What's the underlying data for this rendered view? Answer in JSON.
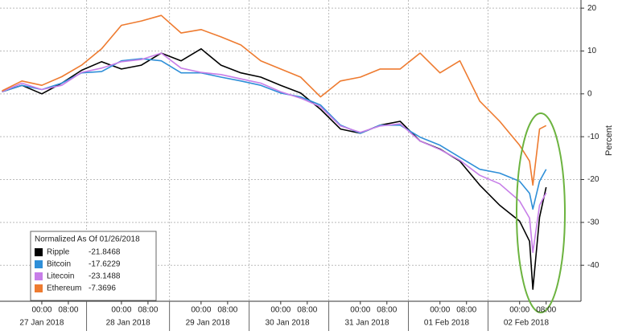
{
  "chart_data": {
    "type": "line",
    "y_label": "Percent",
    "legend_title": "Normalized As Of 01/26/2018",
    "x": [
      "2018-01-26T12:00",
      "2018-01-26T18:00",
      "2018-01-27T00:00",
      "2018-01-27T06:00",
      "2018-01-27T12:00",
      "2018-01-27T18:00",
      "2018-01-28T00:00",
      "2018-01-28T06:00",
      "2018-01-28T12:00",
      "2018-01-28T18:00",
      "2018-01-29T00:00",
      "2018-01-29T06:00",
      "2018-01-29T12:00",
      "2018-01-29T18:00",
      "2018-01-30T00:00",
      "2018-01-30T06:00",
      "2018-01-30T12:00",
      "2018-01-30T18:00",
      "2018-01-31T00:00",
      "2018-01-31T06:00",
      "2018-01-31T12:00",
      "2018-01-31T18:00",
      "2018-02-01T00:00",
      "2018-02-01T06:00",
      "2018-02-01T12:00",
      "2018-02-01T18:00",
      "2018-02-02T00:00",
      "2018-02-02T03:00",
      "2018-02-02T04:00",
      "2018-02-02T06:00",
      "2018-02-02T08:00"
    ],
    "series": [
      {
        "name": "Ripple",
        "color": "#000000",
        "legend_value": "-21.8468",
        "values": [
          0.5,
          2,
          0,
          2.5,
          5.5,
          7.5,
          5.8,
          6.7,
          9.5,
          7.7,
          10.5,
          6.7,
          4.9,
          3.9,
          2,
          0.2,
          -3.6,
          -8.2,
          -9.2,
          -7.3,
          -6.4,
          -11,
          -12.9,
          -15.7,
          -21.3,
          -26,
          -29.7,
          -34.4,
          -45.6,
          -28.8,
          -21.8
        ]
      },
      {
        "name": "Bitcoin",
        "color": "#2f8fd8",
        "legend_value": "-17.6229",
        "values": [
          0.5,
          2,
          1,
          2.5,
          4.9,
          5.2,
          7.7,
          8.2,
          7.7,
          4.9,
          4.9,
          3.9,
          3,
          2,
          0.2,
          -0.7,
          -2.6,
          -7.3,
          -9.2,
          -7.3,
          -7.3,
          -10.1,
          -12,
          -14.8,
          -17.6,
          -18.5,
          -20.4,
          -23.2,
          -26.9,
          -20.4,
          -17.6
        ]
      },
      {
        "name": "Litecoin",
        "color": "#c77ee8",
        "legend_value": "-23.1488",
        "values": [
          0.5,
          2.5,
          1,
          2,
          5,
          6,
          7.5,
          8,
          9.5,
          6,
          5,
          4.5,
          3.5,
          2.5,
          0.5,
          -1,
          -3,
          -7.5,
          -9,
          -7.5,
          -7,
          -11,
          -13,
          -15.5,
          -19,
          -21,
          -25,
          -29,
          -37,
          -26,
          -23.1
        ]
      },
      {
        "name": "Ethereum",
        "color": "#ee7b30",
        "legend_value": "-7.3696",
        "values": [
          0.7,
          3,
          2,
          4,
          6.7,
          10.5,
          16,
          17,
          18.3,
          14.2,
          15,
          13.3,
          11.4,
          7.7,
          5.8,
          3.9,
          -0.7,
          3,
          3.9,
          5.8,
          5.8,
          9.5,
          4.9,
          7.7,
          -1.7,
          -6.4,
          -12,
          -15.7,
          -21.3,
          -8.2,
          -7.4
        ]
      }
    ],
    "xlim": [
      "2018-01-26T11:24",
      "2018-02-02T18:30"
    ],
    "xticks": [
      {
        "value": "2018-01-27T00:00",
        "label": "00:00"
      },
      {
        "value": "2018-01-27T08:00",
        "label": "08:00"
      },
      {
        "value": "2018-01-28T00:00",
        "label": "00:00"
      },
      {
        "value": "2018-01-28T08:00",
        "label": "08:00"
      },
      {
        "value": "2018-01-29T00:00",
        "label": "00:00"
      },
      {
        "value": "2018-01-29T08:00",
        "label": "08:00"
      },
      {
        "value": "2018-01-30T00:00",
        "label": "00:00"
      },
      {
        "value": "2018-01-30T08:00",
        "label": "08:00"
      },
      {
        "value": "2018-01-31T00:00",
        "label": "00:00"
      },
      {
        "value": "2018-01-31T08:00",
        "label": "08:00"
      },
      {
        "value": "2018-02-01T00:00",
        "label": "00:00"
      },
      {
        "value": "2018-02-01T08:00",
        "label": "08:00"
      },
      {
        "value": "2018-02-02T00:00",
        "label": "00:00"
      },
      {
        "value": "2018-02-02T08:00",
        "label": "08:00"
      }
    ],
    "x_group_labels": [
      {
        "value": "2018-01-27T00:00",
        "label": "27 Jan 2018"
      },
      {
        "value": "2018-01-28T02:00",
        "label": "28 Jan 2018"
      },
      {
        "value": "2018-01-29T02:00",
        "label": "29 Jan 2018"
      },
      {
        "value": "2018-01-30T02:00",
        "label": "30 Jan 2018"
      },
      {
        "value": "2018-01-31T02:00",
        "label": "31 Jan 2018"
      },
      {
        "value": "2018-02-01T02:00",
        "label": "01 Feb 2018"
      },
      {
        "value": "2018-02-02T02:00",
        "label": "02 Feb 2018"
      }
    ],
    "ylim": [
      -48.4,
      21.9
    ],
    "yticks": [
      20,
      10,
      0,
      -10,
      -20,
      -30,
      -40
    ],
    "grid": true
  }
}
